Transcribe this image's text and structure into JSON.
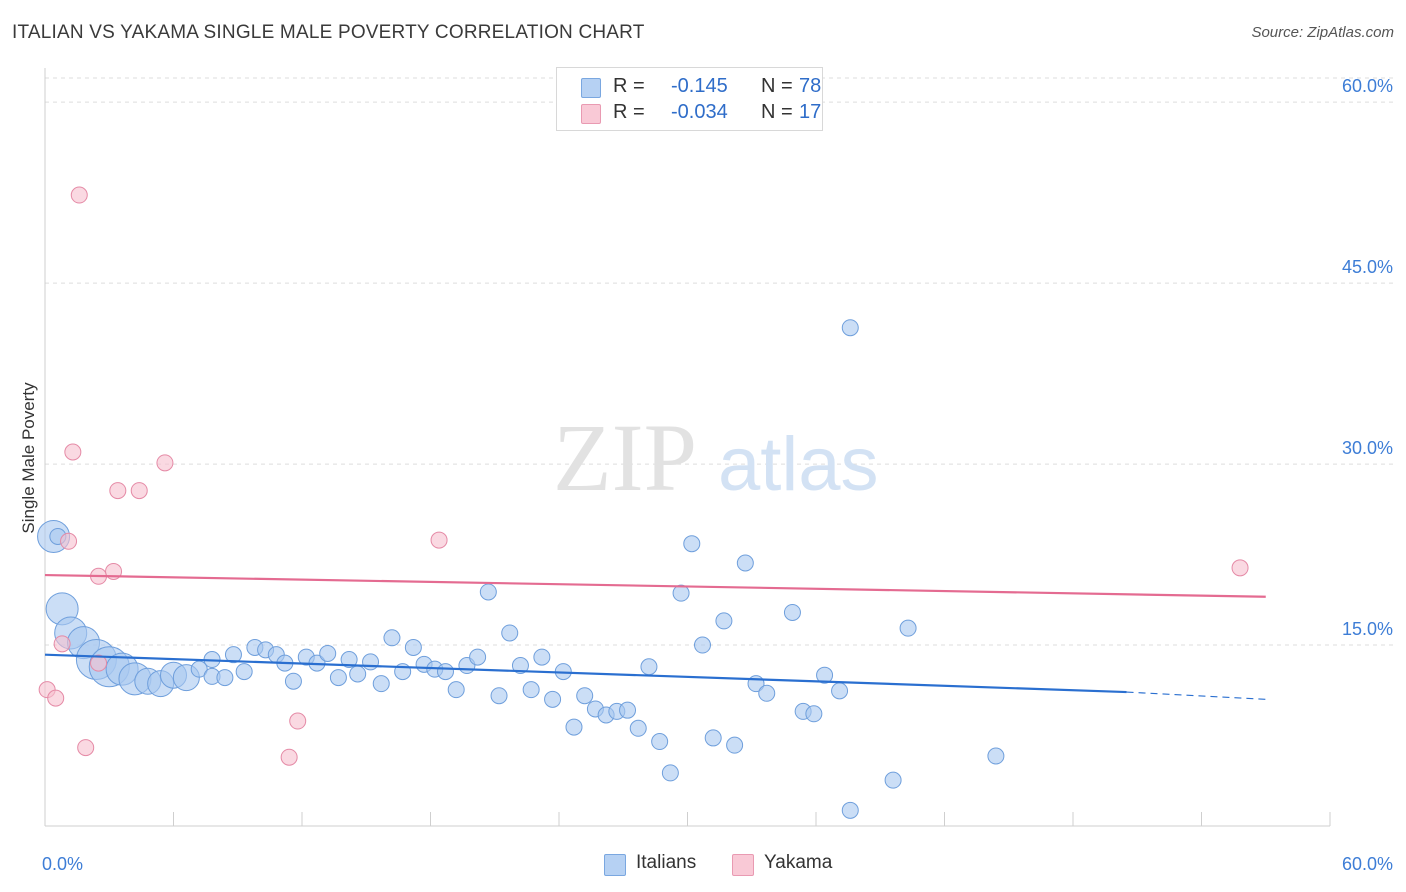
{
  "title": "ITALIAN VS YAKAMA SINGLE MALE POVERTY CORRELATION CHART",
  "source": "Source: ZipAtlas.com",
  "watermark": {
    "zip": "ZIP",
    "atlas": "atlas"
  },
  "colors": {
    "italians_fill": "#a9c8f0",
    "italians_stroke": "#6f9fdc",
    "italians_line": "#2a6fd0",
    "yakama_fill": "#f6bfcf",
    "yakama_stroke": "#e58aa6",
    "yakama_line": "#e46b91",
    "tick_label": "#3d7dd6",
    "grid": "#dddddd"
  },
  "legend_stats": [
    {
      "r_label": "R =",
      "r": "-0.145",
      "n_label": "N =",
      "n": "78"
    },
    {
      "r_label": "R =",
      "r": "-0.034",
      "n_label": "N =",
      "n": "17"
    }
  ],
  "chart_data": {
    "type": "scatter",
    "ylabel": "Single Male Poverty",
    "xlim": [
      0,
      60
    ],
    "ylim": [
      0,
      62
    ],
    "x_tick_labels": [
      {
        "value": 0,
        "label": "0.0%"
      },
      {
        "value": 60,
        "label": "60.0%"
      }
    ],
    "y_tick_labels": [
      {
        "value": 15,
        "label": "15.0%"
      },
      {
        "value": 30,
        "label": "30.0%"
      },
      {
        "value": 45,
        "label": "45.0%"
      },
      {
        "value": 60,
        "label": "60.0%"
      }
    ],
    "grid": true,
    "legend_position": "bottom",
    "series": [
      {
        "name": "Italians",
        "points": [
          [
            0.4,
            24.0,
            3
          ],
          [
            0.8,
            18.0,
            3
          ],
          [
            1.2,
            16.0,
            3
          ],
          [
            1.8,
            15.2,
            3
          ],
          [
            2.4,
            13.8,
            4
          ],
          [
            3.0,
            13.2,
            4
          ],
          [
            3.6,
            13.0,
            3
          ],
          [
            4.2,
            12.2,
            3
          ],
          [
            4.8,
            12.0,
            2
          ],
          [
            5.4,
            11.8,
            2
          ],
          [
            6.0,
            12.5,
            2
          ],
          [
            6.6,
            12.3,
            2
          ],
          [
            7.2,
            13.0,
            1
          ],
          [
            7.8,
            12.4,
            1
          ],
          [
            7.8,
            13.8,
            1
          ],
          [
            8.4,
            12.3,
            1
          ],
          [
            8.8,
            14.2,
            1
          ],
          [
            9.3,
            12.8,
            1
          ],
          [
            9.8,
            14.8,
            1
          ],
          [
            10.3,
            14.6,
            1
          ],
          [
            10.8,
            14.2,
            1
          ],
          [
            11.2,
            13.5,
            1
          ],
          [
            11.6,
            12.0,
            1
          ],
          [
            12.2,
            14.0,
            1
          ],
          [
            12.7,
            13.5,
            1
          ],
          [
            13.2,
            14.3,
            1
          ],
          [
            13.7,
            12.3,
            1
          ],
          [
            14.2,
            13.8,
            1
          ],
          [
            14.6,
            12.6,
            1
          ],
          [
            15.2,
            13.6,
            1
          ],
          [
            15.7,
            11.8,
            1
          ],
          [
            16.2,
            15.6,
            1
          ],
          [
            16.7,
            12.8,
            1
          ],
          [
            17.2,
            14.8,
            1
          ],
          [
            17.7,
            13.4,
            1
          ],
          [
            18.2,
            13.0,
            1
          ],
          [
            18.7,
            12.8,
            1
          ],
          [
            19.2,
            11.3,
            1
          ],
          [
            19.7,
            13.3,
            1
          ],
          [
            20.2,
            14.0,
            1
          ],
          [
            20.7,
            19.4,
            1
          ],
          [
            21.2,
            10.8,
            1
          ],
          [
            21.7,
            16.0,
            1
          ],
          [
            22.2,
            13.3,
            1
          ],
          [
            22.7,
            11.3,
            1
          ],
          [
            23.2,
            14.0,
            1
          ],
          [
            23.7,
            10.5,
            1
          ],
          [
            24.2,
            12.8,
            1
          ],
          [
            24.7,
            8.2,
            1
          ],
          [
            25.2,
            10.8,
            1
          ],
          [
            25.7,
            9.7,
            1
          ],
          [
            26.2,
            9.2,
            1
          ],
          [
            26.7,
            9.5,
            1
          ],
          [
            27.2,
            9.6,
            1
          ],
          [
            27.7,
            8.1,
            1
          ],
          [
            28.2,
            13.2,
            1
          ],
          [
            28.7,
            7.0,
            1
          ],
          [
            29.2,
            4.4,
            1
          ],
          [
            29.7,
            19.3,
            1
          ],
          [
            30.2,
            23.4,
            1
          ],
          [
            30.7,
            15.0,
            1
          ],
          [
            31.2,
            7.3,
            1
          ],
          [
            31.7,
            17.0,
            1
          ],
          [
            32.2,
            6.7,
            1
          ],
          [
            32.7,
            21.8,
            1
          ],
          [
            33.2,
            11.8,
            1
          ],
          [
            33.7,
            11.0,
            1
          ],
          [
            34.9,
            17.7,
            1
          ],
          [
            35.4,
            9.5,
            1
          ],
          [
            35.9,
            9.3,
            1
          ],
          [
            36.4,
            12.5,
            1
          ],
          [
            37.1,
            11.2,
            1
          ],
          [
            37.6,
            41.3,
            1
          ],
          [
            37.6,
            1.3,
            1
          ],
          [
            39.6,
            3.8,
            1
          ],
          [
            40.3,
            16.4,
            1
          ],
          [
            44.4,
            5.8,
            1
          ],
          [
            0.6,
            24.0,
            1
          ]
        ]
      },
      {
        "name": "Yakama",
        "points": [
          [
            0.1,
            11.3,
            1
          ],
          [
            0.5,
            10.6,
            1
          ],
          [
            0.8,
            15.1,
            1
          ],
          [
            1.1,
            23.6,
            1
          ],
          [
            1.3,
            31.0,
            1
          ],
          [
            1.6,
            52.3,
            1
          ],
          [
            1.9,
            6.5,
            1
          ],
          [
            2.5,
            13.5,
            1
          ],
          [
            2.5,
            20.7,
            1
          ],
          [
            3.2,
            21.1,
            1
          ],
          [
            3.4,
            27.8,
            1
          ],
          [
            4.4,
            27.8,
            1
          ],
          [
            5.6,
            30.1,
            1
          ],
          [
            11.4,
            5.7,
            1
          ],
          [
            11.8,
            8.7,
            1
          ],
          [
            18.4,
            23.7,
            1
          ],
          [
            55.8,
            21.4,
            1
          ]
        ]
      }
    ],
    "trend_lines": [
      {
        "series": "Italians",
        "x_start": 0,
        "y_start": 14.2,
        "x_end": 50.5,
        "y_end": 11.1,
        "dashed_to_x": 57,
        "dashed_to_y": 10.5
      },
      {
        "series": "Yakama",
        "x_start": 0,
        "y_start": 20.8,
        "x_end": 57,
        "y_end": 19.0
      }
    ]
  }
}
